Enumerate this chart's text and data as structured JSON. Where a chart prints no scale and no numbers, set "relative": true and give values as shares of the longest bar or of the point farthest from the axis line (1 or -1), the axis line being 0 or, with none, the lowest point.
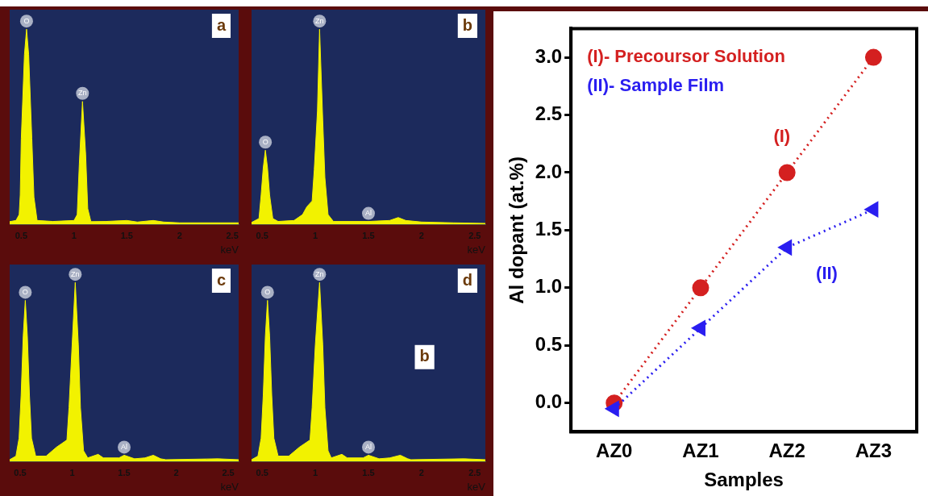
{
  "chart_data": [
    {
      "type": "area",
      "relative": true,
      "color": "#f2f200",
      "xlabel": "keV",
      "xlim": [
        0.39,
        2.56
      ],
      "xticks": [
        0.5,
        1,
        1.5,
        2,
        2.5
      ],
      "grid": false,
      "annotations": [
        "a",
        {
          "text": "O",
          "x": 0.55,
          "y": 1
        },
        {
          "text": "Zn",
          "x": 1.08,
          "y": 0.63
        }
      ],
      "x": [
        0.39,
        0.45,
        0.48,
        0.49,
        0.5,
        0.53,
        0.55,
        0.57,
        0.6,
        0.62,
        0.65,
        0.8,
        1.0,
        1.03,
        1.05,
        1.08,
        1.11,
        1.13,
        1.16,
        1.3,
        1.5,
        1.6,
        1.75,
        1.85,
        2.0,
        2.56
      ],
      "values": [
        0.014,
        0.02,
        0.05,
        0.15,
        0.44,
        0.87,
        1,
        0.87,
        0.44,
        0.14,
        0.02,
        0.015,
        0.02,
        0.05,
        0.31,
        0.63,
        0.36,
        0.08,
        0.014,
        0.015,
        0.02,
        0.012,
        0.02,
        0.012,
        0.008,
        0.008
      ]
    },
    {
      "type": "area",
      "relative": true,
      "color": "#f2f200",
      "xlabel": "keV",
      "xlim": [
        0.4,
        2.6
      ],
      "xticks": [
        0.5,
        1,
        1.5,
        2,
        2.5
      ],
      "grid": false,
      "annotations": [
        "b",
        {
          "text": "O",
          "x": 0.53,
          "y": 0.38
        },
        {
          "text": "Zn",
          "x": 1.04,
          "y": 1
        },
        {
          "text": "Al",
          "x": 1.5,
          "y": 0.015
        }
      ],
      "x": [
        0.4,
        0.47,
        0.49,
        0.51,
        0.53,
        0.55,
        0.57,
        0.6,
        0.65,
        0.8,
        0.88,
        0.92,
        0.97,
        0.99,
        1.02,
        1.04,
        1.07,
        1.09,
        1.12,
        1.17,
        1.5,
        1.7,
        1.78,
        1.85,
        2.0,
        2.3,
        2.6
      ],
      "values": [
        0.01,
        0.03,
        0.15,
        0.29,
        0.38,
        0.29,
        0.15,
        0.03,
        0.015,
        0.02,
        0.05,
        0.09,
        0.12,
        0.28,
        0.58,
        1,
        0.53,
        0.24,
        0.05,
        0.015,
        0.015,
        0.02,
        0.035,
        0.02,
        0.012,
        0.008,
        0.005
      ]
    },
    {
      "type": "area",
      "relative": true,
      "color": "#f2f200",
      "xlabel": "keV",
      "xlim": [
        0.4,
        2.6
      ],
      "xticks": [
        0.5,
        1,
        1.5,
        2,
        2.5
      ],
      "grid": false,
      "annotations": [
        "c",
        {
          "text": "O",
          "x": 0.55,
          "y": 0.9
        },
        {
          "text": "Zn",
          "x": 1.03,
          "y": 1
        },
        {
          "text": "Al",
          "x": 1.5,
          "y": 0.035
        }
      ],
      "x": [
        0.4,
        0.46,
        0.49,
        0.51,
        0.53,
        0.55,
        0.57,
        0.59,
        0.61,
        0.65,
        0.75,
        0.85,
        0.9,
        0.95,
        0.97,
        1.0,
        1.03,
        1.06,
        1.08,
        1.11,
        1.15,
        1.25,
        1.3,
        1.45,
        1.5,
        1.6,
        1.7,
        1.78,
        1.85,
        1.9,
        2.4,
        2.6
      ],
      "values": [
        0.01,
        0.03,
        0.13,
        0.37,
        0.7,
        0.9,
        0.7,
        0.37,
        0.13,
        0.03,
        0.03,
        0.08,
        0.1,
        0.12,
        0.3,
        0.65,
        1,
        0.65,
        0.3,
        0.06,
        0.02,
        0.04,
        0.02,
        0.02,
        0.035,
        0.015,
        0.02,
        0.035,
        0.015,
        0.01,
        0.015,
        0.01
      ]
    },
    {
      "type": "area",
      "relative": true,
      "color": "#f2f200",
      "xlabel": "keV",
      "xlim": [
        0.4,
        2.6
      ],
      "xticks": [
        0.5,
        1,
        1.5,
        2,
        2.5
      ],
      "grid": false,
      "annotations": [
        "d",
        "b",
        {
          "text": "O",
          "x": 0.55,
          "y": 0.9
        },
        {
          "text": "Zn",
          "x": 1.04,
          "y": 1
        },
        {
          "text": "Al",
          "x": 1.5,
          "y": 0.035
        }
      ],
      "x": [
        0.4,
        0.46,
        0.49,
        0.51,
        0.53,
        0.55,
        0.57,
        0.59,
        0.61,
        0.65,
        0.75,
        0.85,
        0.9,
        0.95,
        0.97,
        1.0,
        1.04,
        1.07,
        1.09,
        1.12,
        1.15,
        1.25,
        1.3,
        1.45,
        1.5,
        1.6,
        1.7,
        1.8,
        1.87,
        1.9,
        2.4,
        2.6
      ],
      "values": [
        0.01,
        0.03,
        0.13,
        0.37,
        0.7,
        0.9,
        0.7,
        0.37,
        0.13,
        0.03,
        0.03,
        0.08,
        0.1,
        0.12,
        0.3,
        0.65,
        1,
        0.65,
        0.3,
        0.06,
        0.02,
        0.04,
        0.02,
        0.02,
        0.035,
        0.015,
        0.02,
        0.035,
        0.015,
        0.01,
        0.015,
        0.01
      ]
    },
    {
      "type": "line",
      "xlabel": "Samples",
      "ylabel": "Al dopant (at.%)",
      "categories": [
        "AZ0",
        "AZ1",
        "AZ2",
        "AZ3"
      ],
      "ylim": [
        -0.25,
        3.25
      ],
      "yticks": [
        {
          "value": 0,
          "label": "0.0"
        },
        {
          "value": 0.5,
          "label": "0.5"
        },
        {
          "value": 1,
          "label": "1.0"
        },
        {
          "value": 1.5,
          "label": "1.5"
        },
        {
          "value": 2,
          "label": "2.0"
        },
        {
          "value": 2.5,
          "label": "2.5"
        },
        {
          "value": 3,
          "label": "3.0"
        }
      ],
      "line_style": "dotted",
      "legend": "top left",
      "grid": false,
      "annotations": [
        "(I)",
        "(II)"
      ],
      "series": [
        {
          "name": "(I)- Precoursor Solution",
          "color": "#d42020",
          "marker": "circle",
          "values": [
            0,
            1,
            2,
            3
          ]
        },
        {
          "name": "(II)- Sample Film",
          "color": "#2a1ef0",
          "marker": "triangle",
          "values": [
            -0.05,
            0.65,
            1.35,
            1.68
          ]
        }
      ]
    }
  ]
}
